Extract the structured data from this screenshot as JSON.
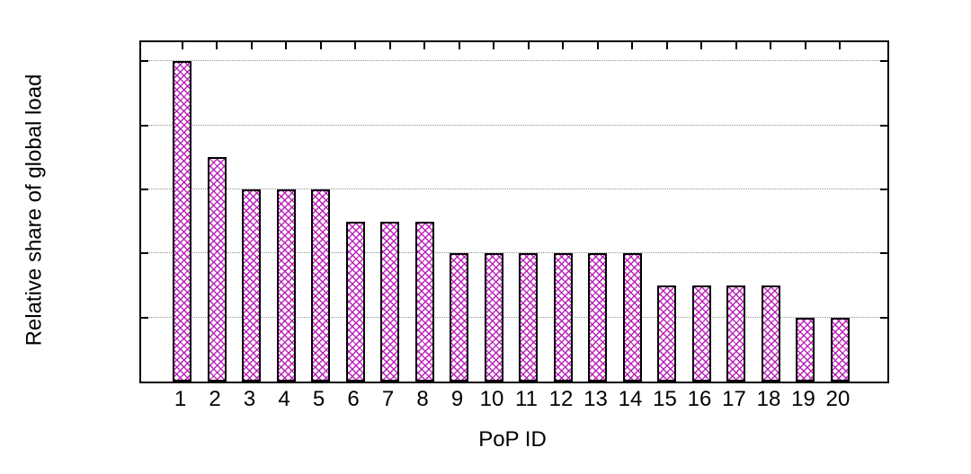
{
  "chart_data": {
    "type": "bar",
    "title": "",
    "xlabel": "PoP ID",
    "ylabel": "Relative share of global load",
    "categories": [
      "1",
      "2",
      "3",
      "4",
      "5",
      "6",
      "7",
      "8",
      "9",
      "10",
      "11",
      "12",
      "13",
      "14",
      "15",
      "16",
      "17",
      "18",
      "19",
      "20"
    ],
    "values": [
      5.0,
      3.5,
      3.0,
      3.0,
      3.0,
      2.5,
      2.5,
      2.5,
      2.0,
      2.0,
      2.0,
      2.0,
      2.0,
      2.0,
      1.5,
      1.5,
      1.5,
      1.5,
      1.0,
      1.0
    ],
    "ylim": [
      0,
      5.3
    ],
    "y_gridlines": [
      1,
      2,
      3,
      4,
      5
    ],
    "y_tick_labels_visible": false,
    "grid": "horizontal dotted",
    "legend": "none",
    "bar_style": "crosshatch",
    "colors": {
      "bar_pattern": "#b818b8",
      "bar_fill": "#ffffff",
      "bar_border": "#000000",
      "grid": "#909090",
      "axis": "#000000",
      "background": "#ffffff"
    }
  }
}
